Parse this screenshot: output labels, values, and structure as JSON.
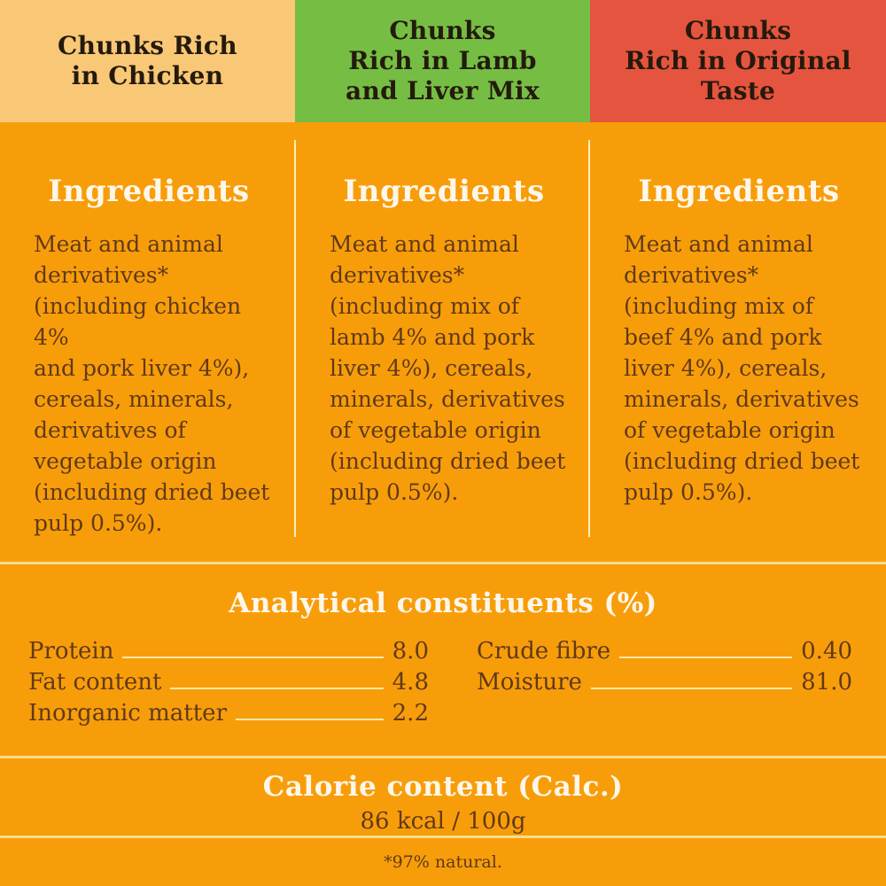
{
  "header": {
    "variants": [
      {
        "label": "Chunks Rich\nin Chicken",
        "background": "#F9C876"
      },
      {
        "label": "Chunks\nRich in Lamb\nand Liver Mix",
        "background": "#76BD44"
      },
      {
        "label": "Chunks\nRich in Original\nTaste",
        "background": "#E5543E"
      }
    ]
  },
  "ingredients": {
    "heading": "Ingredients",
    "columns": [
      {
        "flavor": "chicken",
        "text": "Meat and animal\nderivatives*\n(including chicken 4%\nand pork liver 4%),\ncereals, minerals,\nderivatives of\nvegetable origin\n(including dried beet\npulp 0.5%)."
      },
      {
        "flavor": "lamb-and-liver",
        "text": "Meat and animal\nderivatives*\n(including mix of\nlamb 4% and pork\nliver 4%), cereals,\nminerals, derivatives\nof vegetable origin\n(including dried beet\npulp 0.5%)."
      },
      {
        "flavor": "original",
        "text": "Meat and animal\nderivatives*\n(including mix of\nbeef 4% and pork\nliver 4%), cereals,\nminerals, derivatives\nof vegetable origin\n(including dried beet\npulp 0.5%)."
      }
    ]
  },
  "analytical": {
    "heading": "Analytical constituents (%)",
    "left_rows": [
      {
        "label": "Protein",
        "value": "8.0"
      },
      {
        "label": "Fat content",
        "value": "4.8"
      },
      {
        "label": "Inorganic matter",
        "value": "2.2"
      }
    ],
    "right_rows": [
      {
        "label": "Crude fibre",
        "value": "0.40"
      },
      {
        "label": "Moisture",
        "value": "81.0"
      }
    ]
  },
  "calorie": {
    "heading": "Calorie content (Calc.)",
    "value": "86 kcal / 100g"
  },
  "footer": {
    "note": "*97% natural."
  },
  "colors": {
    "body_background": "#F89D0A",
    "header_chicken": "#F9C876",
    "header_lamb": "#76BD44",
    "header_original": "#E5543E",
    "heading_text": "#FCF7EA",
    "body_text": "#603A18",
    "divider_line": "#F3DE8B"
  }
}
